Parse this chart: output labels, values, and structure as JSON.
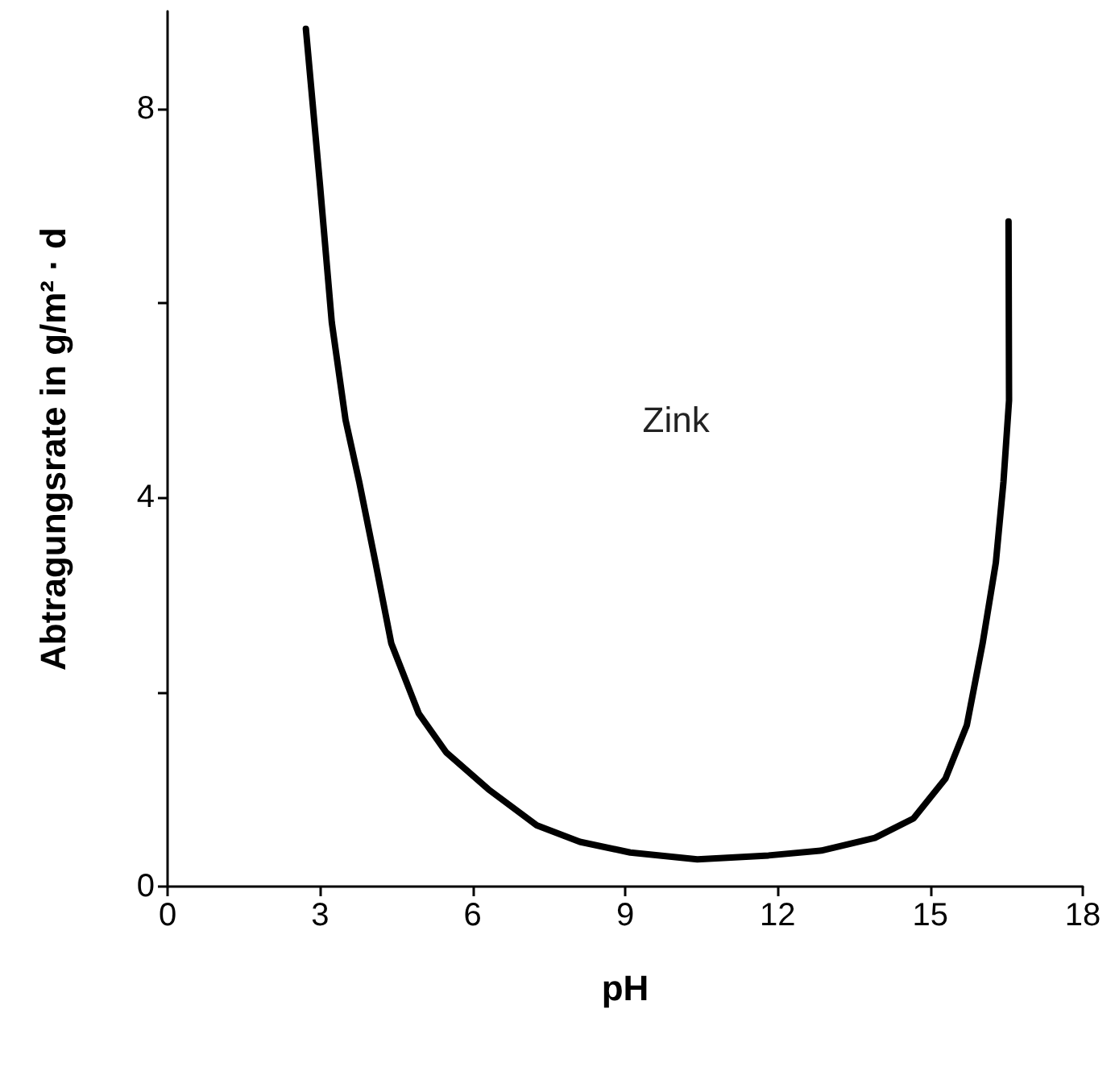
{
  "chart_data": {
    "type": "line",
    "xlabel": "pH",
    "ylabel": "Abtragungsrate in g/m² · d",
    "xlim": [
      0,
      18
    ],
    "xticks": [
      0,
      3,
      6,
      9,
      12,
      15,
      18
    ],
    "ylim": [
      0,
      9
    ],
    "yticks": [
      0,
      {
        "value": 2,
        "label": null
      },
      4,
      {
        "value": 6,
        "label": null
      },
      8
    ],
    "grid": false,
    "legend": false,
    "marker": "none",
    "line_style": "solid",
    "series": [
      {
        "name": "Zink",
        "color": "#000000",
        "x": [
          2.72,
          3.0,
          3.23,
          3.5,
          3.77,
          4.09,
          4.4,
          4.94,
          5.48,
          6.31,
          7.26,
          8.11,
          9.1,
          10.42,
          11.82,
          12.86,
          13.91,
          14.67,
          15.3,
          15.72,
          16.03,
          16.29,
          16.44,
          16.55,
          16.54
        ],
        "values": [
          8.82,
          7.2,
          5.8,
          4.8,
          4.16,
          3.33,
          2.5,
          1.78,
          1.38,
          1.0,
          0.63,
          0.46,
          0.35,
          0.28,
          0.32,
          0.37,
          0.5,
          0.7,
          1.11,
          1.66,
          2.5,
          3.33,
          4.16,
          5.0,
          6.84
        ]
      }
    ]
  }
}
